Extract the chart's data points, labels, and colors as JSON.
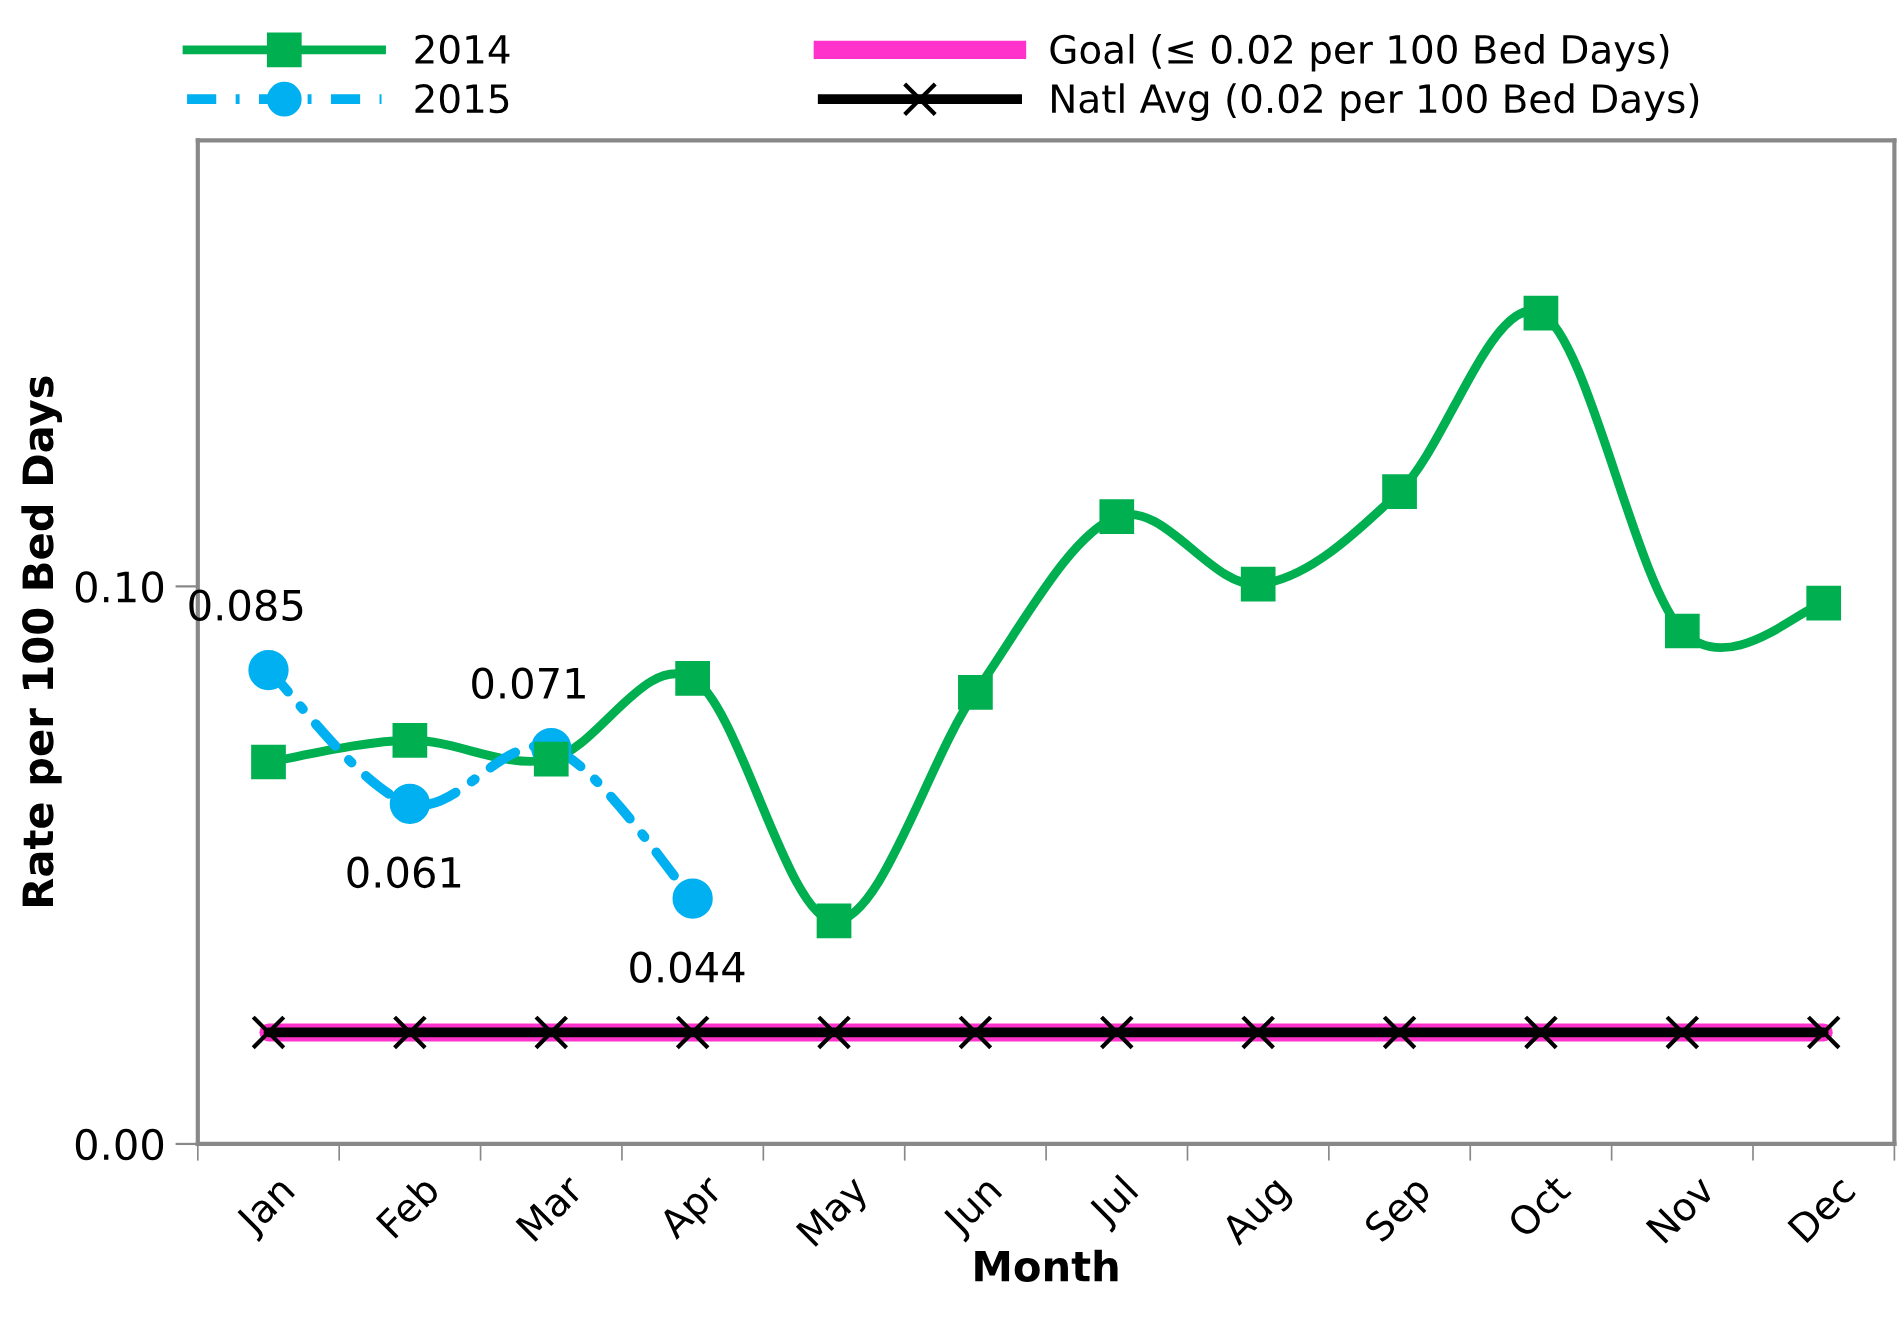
{
  "chart_data": {
    "type": "line",
    "xlabel": "Month",
    "ylabel": "Rate per 100 Bed Days",
    "categories": [
      "Jan",
      "Feb",
      "Mar",
      "Apr",
      "May",
      "Jun",
      "Jul",
      "Aug",
      "Sep",
      "Oct",
      "Nov",
      "Dec"
    ],
    "series": [
      {
        "name": "2014",
        "color": "#00b050",
        "marker": "square",
        "line_style": "solid",
        "values": [
          0.0685,
          0.0724,
          0.069,
          0.0835,
          0.04,
          0.081,
          0.1125,
          0.1004,
          0.117,
          0.149,
          0.092,
          0.097
        ]
      },
      {
        "name": "2015",
        "color": "#00b0f0",
        "marker": "circle",
        "line_style": "dashed",
        "values": [
          0.085,
          0.061,
          0.071,
          0.044,
          null,
          null,
          null,
          null,
          null,
          null,
          null,
          null
        ],
        "value_labels": [
          "0.085",
          "0.061",
          "0.071",
          "0.044",
          null,
          null,
          null,
          null,
          null,
          null,
          null,
          null
        ]
      },
      {
        "name": "Goal (≤ 0.02 per 100 Bed Days)",
        "color": "#ff33cc",
        "marker": "none",
        "line_style": "solid",
        "values": [
          0.02,
          0.02,
          0.02,
          0.02,
          0.02,
          0.02,
          0.02,
          0.02,
          0.02,
          0.02,
          0.02,
          0.02
        ]
      },
      {
        "name": "Natl Avg (0.02 per 100 Bed Days)",
        "color": "#000000",
        "marker": "cross",
        "line_style": "solid",
        "values": [
          0.02,
          0.02,
          0.02,
          0.02,
          0.02,
          0.02,
          0.02,
          0.02,
          0.02,
          0.02,
          0.02,
          0.02
        ]
      }
    ],
    "ylim": [
      0,
      0.18
    ],
    "yticks": [
      {
        "value": 0,
        "label": "0.00"
      },
      {
        "value": 0.1,
        "label": "0.10"
      }
    ],
    "grid": false,
    "legend": "top"
  }
}
